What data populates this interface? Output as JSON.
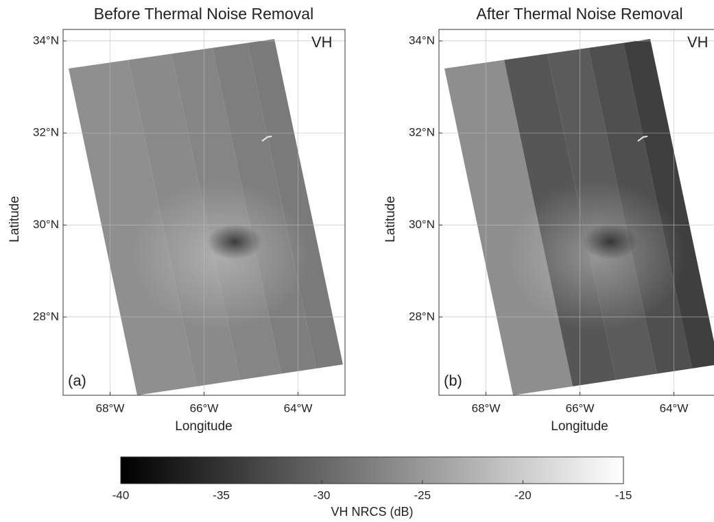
{
  "chart_data": [
    {
      "type": "map",
      "title": "Before Thermal Noise Removal",
      "annotation": "VH",
      "panel_label": "(a)",
      "xlabel": "Longitude",
      "ylabel": "Latitude",
      "xlim": [
        -69,
        -63
      ],
      "ylim": [
        26.3,
        34.25
      ],
      "grid": true,
      "xticks": [
        {
          "value": -68,
          "label": "68°W"
        },
        {
          "value": -66,
          "label": "66°W"
        },
        {
          "value": -64,
          "label": "64°W"
        }
      ],
      "yticks": [
        {
          "value": 28,
          "label": "28°N"
        },
        {
          "value": 30,
          "label": "30°N"
        },
        {
          "value": 32,
          "label": "32°N"
        },
        {
          "value": 34,
          "label": "34°N"
        }
      ]
    },
    {
      "type": "map",
      "title": "After Thermal Noise Removal",
      "annotation": "VH",
      "panel_label": "(b)",
      "xlabel": "Longitude",
      "ylabel": "Latitude",
      "xlim": [
        -69,
        -63
      ],
      "ylim": [
        26.3,
        34.25
      ],
      "grid": true,
      "xticks": [
        {
          "value": -68,
          "label": "68°W"
        },
        {
          "value": -66,
          "label": "66°W"
        },
        {
          "value": -64,
          "label": "64°W"
        }
      ],
      "yticks": [
        {
          "value": 28,
          "label": "28°N"
        },
        {
          "value": 30,
          "label": "30°N"
        },
        {
          "value": 32,
          "label": "32°N"
        },
        {
          "value": 34,
          "label": "34°N"
        }
      ]
    },
    {
      "type": "colorbar",
      "xlabel": "VH NRCS (dB)",
      "xlim": [
        -40,
        -15
      ],
      "xticks": [
        -40,
        -35,
        -30,
        -25,
        -20,
        -15
      ],
      "cmap": "gray"
    }
  ]
}
